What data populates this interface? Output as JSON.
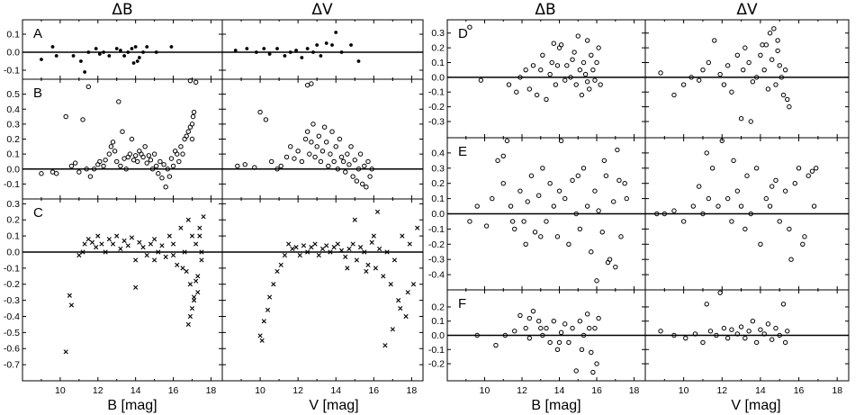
{
  "column_titles": [
    "ΔB",
    "ΔV",
    "ΔB",
    "ΔV"
  ],
  "x_labels": [
    "B [mag]",
    "V [mag]",
    "B [mag]",
    "V [mag]"
  ],
  "chart_data": [
    {
      "panel": "A",
      "column": "ΔB",
      "type": "scatter",
      "marker": "dot",
      "xlim": [
        8,
        18.6
      ],
      "ylim": [
        -0.15,
        0.18
      ],
      "yticks": [
        -0.1,
        0.0,
        0.1
      ],
      "x": [
        9.0,
        9.6,
        9.8,
        10.7,
        11.1,
        11.3,
        11.5,
        11.9,
        12.1,
        12.3,
        12.6,
        13.0,
        13.2,
        13.4,
        13.6,
        13.8,
        13.9,
        14.0,
        14.1,
        14.2,
        14.4,
        14.6,
        15.1,
        15.9
      ],
      "y": [
        -0.04,
        0.03,
        -0.02,
        -0.02,
        -0.05,
        -0.11,
        0.0,
        0.02,
        -0.01,
        0.0,
        -0.02,
        0.02,
        0.01,
        -0.02,
        0.0,
        0.02,
        -0.06,
        0.03,
        -0.05,
        -0.03,
        0.0,
        0.03,
        0.0,
        0.03
      ]
    },
    {
      "panel": "A",
      "column": "ΔV",
      "type": "scatter",
      "marker": "dot",
      "xlim": [
        8,
        18.6
      ],
      "ylim": [
        -0.15,
        0.18
      ],
      "x": [
        8.7,
        9.3,
        9.8,
        10.2,
        10.5,
        10.9,
        11.3,
        11.6,
        11.9,
        12.2,
        12.5,
        12.8,
        13.0,
        13.2,
        13.5,
        13.8,
        14.0,
        14.3,
        14.8,
        15.2
      ],
      "y": [
        0.01,
        0.02,
        0.0,
        0.02,
        -0.01,
        0.02,
        -0.02,
        0.0,
        0.01,
        -0.03,
        0.02,
        0.0,
        0.04,
        -0.02,
        0.05,
        0.04,
        0.11,
        0.0,
        0.04,
        -0.05
      ]
    },
    {
      "panel": "B",
      "column": "ΔB",
      "type": "scatter",
      "marker": "circle",
      "xlim": [
        8,
        18.6
      ],
      "ylim": [
        -0.2,
        0.6
      ],
      "yticks": [
        -0.1,
        0.0,
        0.1,
        0.2,
        0.3,
        0.4,
        0.5
      ],
      "x": [
        9.0,
        9.6,
        9.8,
        10.3,
        10.6,
        10.8,
        11.0,
        11.2,
        11.4,
        11.5,
        11.6,
        11.8,
        12.0,
        12.1,
        12.3,
        12.4,
        12.6,
        12.7,
        12.8,
        12.9,
        13.0,
        13.1,
        13.2,
        13.3,
        13.4,
        13.5,
        13.6,
        13.7,
        13.8,
        13.9,
        14.0,
        14.1,
        14.2,
        14.3,
        14.4,
        14.5,
        14.6,
        14.7,
        14.8,
        14.9,
        15.0,
        15.1,
        15.2,
        15.3,
        15.4,
        15.5,
        15.6,
        15.7,
        15.8,
        15.9,
        16.0,
        16.1,
        16.2,
        16.3,
        16.4,
        16.5,
        16.6,
        16.7,
        16.8,
        16.9,
        17.0,
        17.05,
        17.1,
        17.2,
        16.9,
        17.0
      ],
      "y": [
        -0.03,
        -0.02,
        -0.03,
        0.35,
        0.02,
        0.04,
        -0.02,
        0.33,
        0.0,
        0.55,
        -0.05,
        0.0,
        0.03,
        0.05,
        0.02,
        0.06,
        0.1,
        0.15,
        0.18,
        0.12,
        0.05,
        0.45,
        0.02,
        0.25,
        0.07,
        0.0,
        0.08,
        0.1,
        0.2,
        0.06,
        0.09,
        0.05,
        0.12,
        0.1,
        0.08,
        0.15,
        0.04,
        0.09,
        0.06,
        0.0,
        0.1,
        0.02,
        -0.03,
        0.05,
        -0.06,
        0.03,
        -0.12,
        0.0,
        -0.05,
        0.07,
        0.02,
        0.12,
        0.1,
        0.05,
        0.15,
        0.1,
        0.2,
        0.22,
        0.25,
        0.28,
        0.3,
        0.35,
        0.38,
        0.58,
        0.59,
        0.2
      ]
    },
    {
      "panel": "B",
      "column": "ΔV",
      "type": "scatter",
      "marker": "circle",
      "xlim": [
        8,
        18.6
      ],
      "ylim": [
        -0.2,
        0.6
      ],
      "x": [
        8.8,
        9.2,
        9.7,
        10.0,
        10.3,
        10.6,
        10.9,
        11.1,
        11.4,
        11.6,
        11.8,
        12.0,
        12.2,
        12.4,
        12.5,
        12.6,
        12.7,
        12.8,
        12.9,
        13.0,
        13.1,
        13.2,
        13.3,
        13.4,
        13.5,
        13.6,
        13.7,
        13.8,
        13.9,
        14.0,
        14.1,
        14.2,
        14.3,
        14.4,
        14.5,
        14.6,
        14.7,
        14.8,
        14.9,
        15.0,
        15.1,
        15.2,
        15.3,
        15.4,
        15.5,
        15.6,
        15.7,
        15.8,
        15.9,
        12.5,
        12.7
      ],
      "y": [
        0.02,
        0.03,
        0.01,
        0.38,
        0.33,
        0.05,
        0.0,
        0.02,
        0.08,
        0.15,
        0.07,
        0.12,
        0.05,
        0.2,
        0.25,
        0.1,
        0.18,
        0.3,
        0.08,
        0.15,
        0.22,
        0.05,
        0.12,
        0.28,
        0.18,
        0.02,
        0.1,
        0.25,
        0.05,
        0.15,
        0.0,
        0.2,
        0.08,
        0.05,
        -0.02,
        0.1,
        0.03,
        0.15,
        -0.05,
        0.06,
        -0.08,
        0.0,
        0.1,
        -0.1,
        0.02,
        -0.12,
        0.05,
        -0.05,
        0.0,
        0.56,
        0.57
      ]
    },
    {
      "panel": "C",
      "column": "ΔB",
      "type": "scatter",
      "marker": "cross",
      "xlim": [
        8,
        18.6
      ],
      "ylim": [
        -0.8,
        0.33
      ],
      "yticks": [
        -0.7,
        -0.6,
        -0.5,
        -0.4,
        -0.3,
        -0.2,
        -0.1,
        0.0,
        0.1,
        0.2,
        0.3
      ],
      "x": [
        10.3,
        10.5,
        10.6,
        11.0,
        11.2,
        11.3,
        11.5,
        11.7,
        11.9,
        12.0,
        12.2,
        12.4,
        12.6,
        12.8,
        13.0,
        13.2,
        13.4,
        13.6,
        13.8,
        14.0,
        14.2,
        14.4,
        14.6,
        14.8,
        15.0,
        15.2,
        15.4,
        15.6,
        15.8,
        16.0,
        16.2,
        16.4,
        16.6,
        16.7,
        16.8,
        16.9,
        17.0,
        17.1,
        17.2,
        17.3,
        17.4,
        17.5,
        17.6,
        16.9,
        17.0,
        17.1,
        17.2,
        17.3,
        16.5,
        16.8,
        17.4,
        17.5,
        14.0,
        15.0,
        16.0
      ],
      "y": [
        -0.62,
        -0.27,
        -0.33,
        -0.02,
        0.0,
        0.05,
        0.08,
        0.06,
        0.03,
        0.1,
        0.05,
        0.0,
        0.08,
        0.05,
        0.1,
        0.02,
        0.07,
        0.04,
        0.09,
        -0.05,
        0.06,
        0.03,
        -0.02,
        0.05,
        0.08,
        0.0,
        0.04,
        -0.03,
        0.1,
        0.05,
        -0.08,
        0.15,
        0.0,
        -0.12,
        0.2,
        -0.2,
        0.1,
        -0.3,
        0.05,
        -0.15,
        0.1,
        0.0,
        0.22,
        -0.4,
        -0.35,
        -0.28,
        -0.18,
        -0.25,
        -0.1,
        -0.45,
        0.15,
        -0.05,
        -0.22,
        -0.05,
        -0.02
      ]
    },
    {
      "panel": "C",
      "column": "ΔV",
      "type": "scatter",
      "marker": "cross",
      "xlim": [
        8,
        18.6
      ],
      "ylim": [
        -0.8,
        0.33
      ],
      "x": [
        10.0,
        10.1,
        10.2,
        10.4,
        10.5,
        10.7,
        10.9,
        11.1,
        11.3,
        11.5,
        11.7,
        11.9,
        12.1,
        12.3,
        12.5,
        12.7,
        12.9,
        13.1,
        13.3,
        13.5,
        13.7,
        13.9,
        14.1,
        14.3,
        14.5,
        14.7,
        14.9,
        15.1,
        15.3,
        15.5,
        15.7,
        15.9,
        16.1,
        16.3,
        16.5,
        16.7,
        16.9,
        17.1,
        17.3,
        17.5,
        17.7,
        17.9,
        18.1,
        18.3,
        16.6,
        17.0,
        17.4,
        17.8,
        16.2,
        15.6,
        14.6,
        15.0,
        16.0
      ],
      "y": [
        -0.52,
        -0.55,
        -0.43,
        -0.36,
        -0.28,
        -0.2,
        -0.12,
        -0.08,
        -0.02,
        0.05,
        0.02,
        0.03,
        -0.02,
        0.04,
        0.0,
        0.03,
        0.05,
        -0.02,
        0.02,
        0.04,
        0.0,
        0.03,
        0.05,
        0.01,
        -0.03,
        0.02,
        0.05,
        -0.05,
        0.03,
        0.0,
        -0.08,
        0.06,
        -0.1,
        0.02,
        -0.15,
        0.0,
        -0.2,
        -0.05,
        -0.3,
        0.1,
        -0.4,
        0.05,
        -0.2,
        0.15,
        -0.58,
        -0.48,
        -0.35,
        -0.25,
        0.25,
        -0.12,
        -0.1,
        0.2,
        0.1
      ]
    },
    {
      "panel": "D",
      "column": "ΔB",
      "type": "scatter",
      "marker": "circle",
      "xlim": [
        8,
        18.6
      ],
      "ylim": [
        -0.41,
        0.39
      ],
      "yticks": [
        -0.3,
        -0.2,
        -0.1,
        0.0,
        0.1,
        0.2,
        0.3
      ],
      "x": [
        9.2,
        9.8,
        11.3,
        11.7,
        11.9,
        12.2,
        12.4,
        12.6,
        12.8,
        13.0,
        13.1,
        13.3,
        13.5,
        13.6,
        13.8,
        14.0,
        14.1,
        14.3,
        14.4,
        14.6,
        14.7,
        14.9,
        15.0,
        15.1,
        15.2,
        15.3,
        15.4,
        15.5,
        15.6,
        15.7,
        15.8,
        15.9,
        16.0,
        16.1,
        13.7,
        13.9,
        14.8,
        15.5,
        16.2
      ],
      "y": [
        0.34,
        -0.02,
        -0.05,
        -0.1,
        0.0,
        0.05,
        -0.08,
        0.08,
        -0.12,
        0.05,
        0.15,
        -0.15,
        0.02,
        0.1,
        -0.05,
        0.2,
        0.22,
        -0.02,
        0.08,
        0.0,
        0.12,
        -0.05,
        0.28,
        0.05,
        -0.12,
        0.1,
        0.02,
        0.25,
        -0.08,
        0.15,
        0.05,
        -0.02,
        0.1,
        0.2,
        0.23,
        0.08,
        0.17,
        -0.03,
        -0.05
      ]
    },
    {
      "panel": "D",
      "column": "ΔV",
      "type": "scatter",
      "marker": "circle",
      "xlim": [
        8,
        18.6
      ],
      "ylim": [
        -0.41,
        0.39
      ],
      "x": [
        8.8,
        9.5,
        10.0,
        10.4,
        10.8,
        11.0,
        11.3,
        11.6,
        11.9,
        12.1,
        12.3,
        12.5,
        12.8,
        13.0,
        13.1,
        13.2,
        13.4,
        13.6,
        13.8,
        14.0,
        14.1,
        14.2,
        14.4,
        14.5,
        14.6,
        14.7,
        14.8,
        14.9,
        15.0,
        15.1,
        15.2,
        15.3,
        15.4,
        15.5,
        13.5,
        14.3,
        14.9
      ],
      "y": [
        0.03,
        -0.12,
        -0.05,
        0.0,
        -0.02,
        0.05,
        0.1,
        0.25,
        0.02,
        -0.05,
        0.08,
        -0.1,
        0.15,
        -0.28,
        0.05,
        0.2,
        0.1,
        -0.03,
        0.0,
        0.15,
        0.22,
        0.05,
        -0.08,
        0.3,
        0.12,
        0.33,
        -0.05,
        0.18,
        0.08,
        0.0,
        -0.12,
        0.05,
        -0.15,
        -0.2,
        -0.3,
        0.22,
        0.25
      ]
    },
    {
      "panel": "E",
      "column": "ΔB",
      "type": "scatter",
      "marker": "circle",
      "xlim": [
        8,
        18.6
      ],
      "ylim": [
        -0.5,
        0.5
      ],
      "yticks": [
        -0.4,
        -0.3,
        -0.2,
        -0.1,
        0.0,
        0.1,
        0.2,
        0.3,
        0.4
      ],
      "x": [
        9.2,
        9.6,
        10.1,
        10.4,
        10.7,
        11.0,
        11.2,
        11.4,
        11.6,
        11.9,
        12.1,
        12.3,
        12.5,
        12.7,
        12.9,
        13.1,
        13.3,
        13.5,
        13.7,
        13.9,
        14.1,
        14.3,
        14.5,
        14.7,
        14.9,
        15.1,
        15.3,
        15.5,
        15.7,
        15.9,
        16.1,
        16.3,
        16.5,
        16.7,
        16.9,
        17.1,
        17.3,
        17.5,
        17.6,
        11.0,
        11.5,
        12.2,
        13.0,
        14.0,
        15.0,
        16.0,
        16.4,
        16.6,
        17.0,
        17.2
      ],
      "y": [
        -0.05,
        0.05,
        -0.08,
        0.1,
        0.35,
        0.2,
        0.48,
        0.05,
        -0.1,
        0.15,
        -0.05,
        0.08,
        0.25,
        -0.12,
        0.12,
        0.3,
        -0.05,
        0.2,
        0.05,
        -0.15,
        0.48,
        0.1,
        -0.2,
        0.22,
        0.0,
        -0.1,
        0.3,
        0.05,
        -0.25,
        0.15,
        0.02,
        -0.12,
        0.25,
        -0.3,
        0.08,
        0.42,
        -0.15,
        0.2,
        0.1,
        0.38,
        -0.05,
        -0.2,
        -0.15,
        0.15,
        0.25,
        -0.44,
        0.35,
        -0.32,
        -0.35,
        0.22
      ]
    },
    {
      "panel": "E",
      "column": "ΔV",
      "type": "scatter",
      "marker": "circle",
      "xlim": [
        8,
        18.6
      ],
      "ylim": [
        -0.5,
        0.5
      ],
      "x": [
        8.6,
        9.0,
        9.5,
        10.0,
        10.5,
        10.8,
        11.0,
        11.3,
        11.5,
        11.8,
        12.0,
        12.3,
        12.5,
        12.8,
        13.0,
        13.3,
        13.5,
        13.8,
        14.0,
        14.3,
        14.5,
        14.8,
        15.0,
        15.3,
        15.5,
        15.8,
        16.0,
        16.3,
        16.5,
        16.8,
        16.9,
        11.2,
        12.6,
        13.2,
        14.6,
        15.6,
        16.2,
        16.7
      ],
      "y": [
        0.0,
        0.0,
        0.02,
        -0.05,
        0.05,
        0.18,
        0.0,
        0.1,
        0.3,
        0.05,
        0.48,
        0.1,
        -0.05,
        0.15,
        0.05,
        0.25,
        0.0,
        0.3,
        -0.2,
        0.1,
        0.05,
        0.22,
        -0.05,
        0.15,
        -0.1,
        0.2,
        0.3,
        -0.15,
        0.25,
        0.05,
        0.3,
        0.4,
        0.35,
        -0.1,
        0.18,
        -0.3,
        -0.2,
        0.28
      ]
    },
    {
      "panel": "F",
      "column": "ΔB",
      "type": "scatter",
      "marker": "circle",
      "xlim": [
        8,
        18.6
      ],
      "ylim": [
        -0.32,
        0.32
      ],
      "yticks": [
        -0.2,
        -0.1,
        0.0,
        0.1,
        0.2
      ],
      "x": [
        9.6,
        10.6,
        11.1,
        11.6,
        11.9,
        12.2,
        12.4,
        12.6,
        12.9,
        13.1,
        13.3,
        13.5,
        13.7,
        13.9,
        14.1,
        14.3,
        14.5,
        14.7,
        14.9,
        15.1,
        15.3,
        15.5,
        15.7,
        15.9,
        16.0,
        12.4,
        13.0,
        14.0,
        15.2,
        15.8,
        16.1,
        15.6
      ],
      "y": [
        0.0,
        -0.07,
        0.0,
        0.03,
        0.14,
        0.05,
        -0.02,
        0.17,
        0.1,
        0.0,
        0.05,
        -0.05,
        0.1,
        -0.1,
        0.02,
        0.08,
        -0.05,
        0.05,
        -0.25,
        0.1,
        0.0,
        0.15,
        -0.12,
        0.05,
        -0.2,
        0.12,
        0.05,
        -0.05,
        -0.1,
        -0.26,
        0.12,
        0.05
      ]
    },
    {
      "panel": "F",
      "column": "ΔV",
      "type": "scatter",
      "marker": "circle",
      "xlim": [
        8,
        18.6
      ],
      "ylim": [
        -0.32,
        0.32
      ],
      "x": [
        8.8,
        9.5,
        10.1,
        10.6,
        11.0,
        11.2,
        11.4,
        11.7,
        11.9,
        12.1,
        12.3,
        12.5,
        12.8,
        13.0,
        13.2,
        13.4,
        13.6,
        13.8,
        14.0,
        14.2,
        14.4,
        14.6,
        14.8,
        15.0,
        15.2,
        15.3,
        15.4
      ],
      "y": [
        0.03,
        0.0,
        -0.02,
        0.01,
        -0.05,
        0.22,
        0.03,
        0.0,
        0.3,
        0.05,
        -0.02,
        0.04,
        0.01,
        0.06,
        -0.02,
        0.03,
        0.1,
        -0.05,
        0.04,
        0.01,
        0.08,
        -0.03,
        0.05,
        0.0,
        0.22,
        -0.05,
        0.03
      ]
    }
  ]
}
